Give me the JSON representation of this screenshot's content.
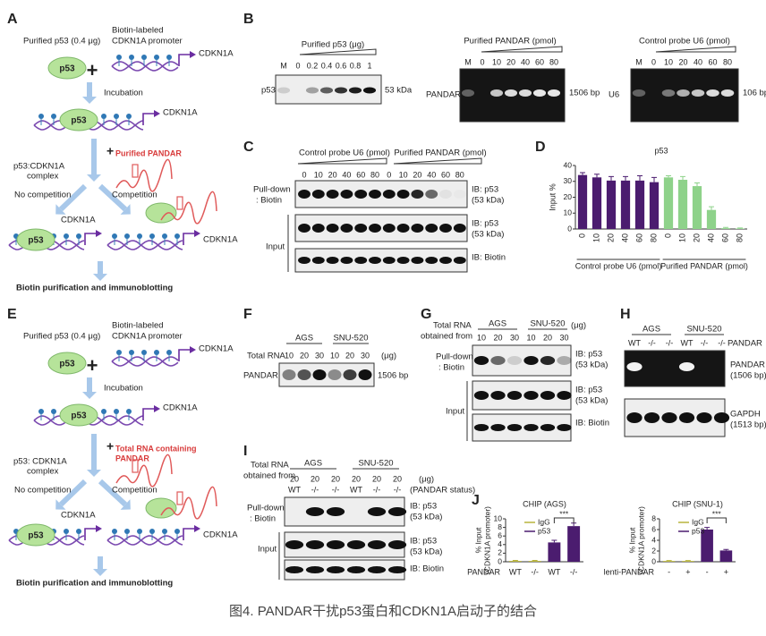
{
  "caption": "图4. PANDAR干扰p53蛋白和CDKN1A启动子的结合",
  "panels": {
    "A": {
      "letter": "A",
      "purified_p53": "Purified p53 (0.4 μg)",
      "biotin_probe": [
        "Biotin-labeled",
        "CDKN1A promoter"
      ],
      "gene": "CDKN1A",
      "p53": "p53",
      "plus": "+",
      "incubation": "Incubation",
      "complex_gene": "CDKN1A",
      "complex_p53": "p53",
      "competitor_plus": "+",
      "competitor": [
        "Purified PANDAR"
      ],
      "complex_label": [
        "p53:CDKN1A",
        "complex"
      ],
      "no_competition": "No competition",
      "competition": "Competition",
      "left_gene": "CDKN1A",
      "left_p53": "p53",
      "right_gene": "CDKN1A",
      "final": "Biotin purification and immunoblotting"
    },
    "E": {
      "letter": "E",
      "purified_p53": "Purified p53 (0.4 μg)",
      "biotin_probe": [
        "Biotin-labeled",
        "CDKN1A promoter"
      ],
      "gene": "CDKN1A",
      "p53": "p53",
      "plus": "+",
      "incubation": "Incubation",
      "complex_gene": "CDKN1A",
      "complex_p53": "p53",
      "competitor_plus": "+",
      "competitor": [
        "Total RNA containing",
        "PANDAR"
      ],
      "complex_label": [
        "p53: CDKN1A",
        "complex"
      ],
      "no_competition": "No competition",
      "competition": "Competition",
      "left_gene": "CDKN1A",
      "left_p53": "p53",
      "right_gene": "CDKN1A",
      "final": "Biotin purification and immunoblotting"
    },
    "B": {
      "letter": "B",
      "blots": [
        {
          "title": "Purified p53 (μg)",
          "lanes": [
            "M",
            "0",
            "0.2",
            "0.4",
            "0.6",
            "0.8",
            "1"
          ],
          "target": "p53",
          "size": "53 kDa"
        },
        {
          "title": "Purified PANDAR (pmol)",
          "lanes": [
            "M",
            "0",
            "10",
            "20",
            "40",
            "60",
            "80"
          ],
          "target": "PANDAR",
          "size": "1506 bp"
        },
        {
          "title": "Control probe U6 (pmol)",
          "lanes": [
            "M",
            "0",
            "10",
            "20",
            "40",
            "60",
            "80"
          ],
          "target": "U6",
          "size": "106 bp"
        }
      ]
    },
    "C": {
      "letter": "C",
      "groups": [
        "Control probe U6 (pmol)",
        "Purified PANDAR (pmol)"
      ],
      "lanes": [
        "0",
        "10",
        "20",
        "40",
        "60",
        "80",
        "0",
        "10",
        "20",
        "40",
        "60",
        "80"
      ],
      "pulldown": [
        "Pull-down",
        ": Biotin"
      ],
      "input": "Input",
      "rows": [
        [
          "IB: p53",
          "(53 kDa)"
        ],
        [
          "IB: p53",
          "(53 kDa)"
        ],
        [
          "IB: Biotin"
        ]
      ]
    },
    "D": {
      "letter": "D"
    },
    "F": {
      "letter": "F",
      "groups": [
        "AGS",
        "SNU-520"
      ],
      "row_label": "Total RNA",
      "lanes": [
        "10",
        "20",
        "30",
        "10",
        "20",
        "30"
      ],
      "unit": "(μg)",
      "target": "PANDAR",
      "size": "1506 bp"
    },
    "G": {
      "letter": "G",
      "row_label": [
        "Total RNA",
        "obtained from"
      ],
      "groups": [
        "AGS",
        "SNU-520"
      ],
      "lanes": [
        "10",
        "20",
        "30",
        "10",
        "20",
        "30"
      ],
      "unit": "(μg)",
      "pulldown": [
        "Pull-down",
        ": Biotin"
      ],
      "input": "Input",
      "rows": [
        [
          "IB: p53",
          "(53 kDa)"
        ],
        [
          "IB: p53",
          "(53 kDa)"
        ],
        [
          "IB: Biotin"
        ]
      ]
    },
    "H": {
      "letter": "H",
      "groups": [
        "AGS",
        "SNU-520"
      ],
      "lanes": [
        "WT",
        "-/-",
        "-/-",
        "WT",
        "-/-",
        "-/-"
      ],
      "lane_label": "PANDAR",
      "rows": [
        [
          "PANDAR",
          "(1506 bp)"
        ],
        [
          "GAPDH",
          "(1513 bp)"
        ]
      ]
    },
    "I": {
      "letter": "I",
      "row_label": [
        "Total RNA",
        "obtained from"
      ],
      "groups": [
        "AGS",
        "SNU-520"
      ],
      "lanes": [
        "20",
        "20",
        "20",
        "20",
        "20",
        "20"
      ],
      "unit": "(μg)",
      "status": [
        "WT",
        "-/-",
        "-/-",
        "WT",
        "-/-",
        "-/-"
      ],
      "status_label": "(PANDAR status)",
      "pulldown": [
        "Pull-down",
        ": Biotin"
      ],
      "input": "Input",
      "rows": [
        [
          "IB: p53",
          "(53 kDa)"
        ],
        [
          "IB: p53",
          "(53 kDa)"
        ],
        [
          "IB: Biotin"
        ]
      ]
    },
    "J": {
      "letter": "J"
    }
  },
  "chart_data": [
    {
      "type": "bar",
      "title": "p53",
      "y_label": "Input %",
      "categories": [
        "0",
        "10",
        "20",
        "40",
        "60",
        "80",
        "0",
        "10",
        "20",
        "40",
        "60",
        "80"
      ],
      "groups": [
        "Control probe U6 (pmol)",
        "Purified PANDAR (pmol)"
      ],
      "series": [
        {
          "color": "#4b1c6f",
          "values": [
            34,
            32.5,
            30.5,
            30.5,
            30.5,
            29.5,
            null,
            null,
            null,
            null,
            null,
            null
          ],
          "errors": [
            1.5,
            2,
            2.5,
            2.5,
            3,
            3,
            null,
            null,
            null,
            null,
            null,
            null
          ]
        },
        {
          "color": "#8ed28a",
          "values": [
            null,
            null,
            null,
            null,
            null,
            null,
            32.5,
            31,
            27,
            12,
            0.5,
            0.3
          ],
          "errors": [
            null,
            null,
            null,
            null,
            null,
            null,
            1,
            2,
            2,
            2,
            0.5,
            0.3
          ]
        }
      ],
      "ylim": [
        0,
        40
      ],
      "yticks": [
        0,
        10,
        20,
        30,
        40
      ]
    },
    {
      "type": "bar",
      "title": "CHIP (AGS)",
      "y_label": [
        "% Input",
        "(CDKN1A promoter)"
      ],
      "x_label": "PANDAR",
      "categories": [
        "WT",
        "-/-",
        "WT",
        "-/-"
      ],
      "series": [
        {
          "name": "IgG",
          "color": "#b8b43c",
          "values": [
            0.2,
            0.2,
            null,
            null
          ],
          "errors": [
            0.1,
            0.1,
            null,
            null
          ]
        },
        {
          "name": "p53",
          "color": "#4b1c6f",
          "values": [
            null,
            null,
            4.5,
            8.3
          ],
          "errors": [
            null,
            null,
            0.5,
            0.7
          ]
        }
      ],
      "ylim": [
        0,
        10
      ],
      "yticks": [
        0,
        2,
        4,
        6,
        8,
        10
      ],
      "annotation": "***"
    },
    {
      "type": "bar",
      "title": "CHIP (SNU-1)",
      "y_label": [
        "% Input",
        "(CDKN1A promoter)"
      ],
      "x_label": "lenti-PANDAR",
      "categories": [
        "-",
        "+",
        "-",
        "+"
      ],
      "series": [
        {
          "name": "IgG",
          "color": "#b8b43c",
          "values": [
            0.15,
            0.15,
            null,
            null
          ],
          "errors": [
            0.08,
            0.08,
            null,
            null
          ]
        },
        {
          "name": "p53",
          "color": "#4b1c6f",
          "values": [
            null,
            null,
            6.0,
            2.1
          ],
          "errors": [
            null,
            null,
            0.4,
            0.2
          ]
        }
      ],
      "ylim": [
        0,
        8
      ],
      "yticks": [
        0,
        2,
        4,
        6,
        8
      ],
      "annotation": "***"
    }
  ]
}
